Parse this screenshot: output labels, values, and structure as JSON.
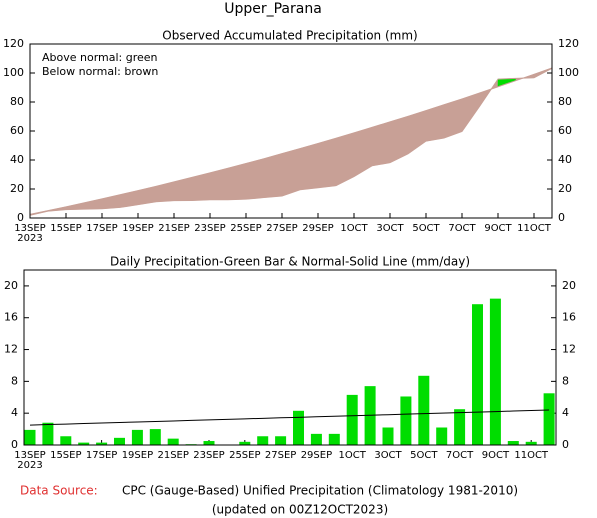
{
  "title": "Upper_Parana",
  "footer": {
    "source_label": "Data Source:",
    "source": "CPC (Gauge-Based) Unified Precipitation (Climatology 1981-2010)",
    "updated": "(updated on 00Z12OCT2023)"
  },
  "chart_data": [
    {
      "type": "area",
      "title": "Observed Accumulated Precipitation (mm)",
      "annotations": [
        "Above normal: green",
        "Below normal: brown"
      ],
      "year_label": "2023",
      "categories": [
        "13SEP",
        null,
        "15SEP",
        null,
        "17SEP",
        null,
        "19SEP",
        null,
        "21SEP",
        null,
        "23SEP",
        null,
        "25SEP",
        null,
        "27SEP",
        null,
        "29SEP",
        null,
        "1OCT",
        null,
        "3OCT",
        null,
        "5OCT",
        null,
        "7OCT",
        null,
        "9OCT",
        null,
        "11OCT",
        null
      ],
      "series": [
        {
          "values": [
            1.9,
            4.7,
            5.8,
            6.1,
            6.4,
            7.3,
            9.2,
            11.2,
            12.0,
            12.1,
            12.6,
            12.6,
            13.0,
            14.1,
            15.2,
            19.5,
            20.9,
            22.3,
            28.6,
            36.0,
            38.2,
            44.3,
            53.0,
            55.2,
            59.7,
            77.4,
            95.8,
            96.3,
            96.7,
            103.2
          ]
        },
        {
          "values": [
            2.5,
            5.1,
            7.7,
            10.4,
            13.2,
            16.0,
            18.9,
            21.8,
            24.9,
            28.0,
            31.1,
            34.3,
            37.6,
            40.9,
            44.4,
            47.9,
            51.4,
            55.0,
            58.7,
            62.5,
            66.3,
            70.1,
            74.1,
            78.1,
            82.1,
            86.3,
            90.5,
            94.8,
            99.1,
            103.5
          ]
        }
      ],
      "above_color": "#00dd00",
      "below_color": "#c8a096",
      "ylim": [
        0,
        120
      ],
      "yticks": [
        0,
        20,
        40,
        60,
        80,
        100,
        120
      ]
    },
    {
      "type": "bar",
      "title": "Daily Precipitation-Green Bar & Normal-Solid Line (mm/day)",
      "year_label": "2023",
      "categories": [
        "13SEP",
        null,
        "15SEP",
        null,
        "17SEP",
        null,
        "19SEP",
        null,
        "21SEP",
        null,
        "23SEP",
        null,
        "25SEP",
        null,
        "27SEP",
        null,
        "29SEP",
        null,
        "1OCT",
        null,
        "3OCT",
        null,
        "5OCT",
        null,
        "7OCT",
        null,
        "9OCT",
        null,
        "11OCT",
        null
      ],
      "series": [
        {
          "type": "bar",
          "color": "#00dd00",
          "values": [
            1.9,
            2.8,
            1.1,
            0.3,
            0.3,
            0.9,
            1.9,
            2.0,
            0.8,
            0.1,
            0.5,
            0,
            0.4,
            1.1,
            1.1,
            4.3,
            1.4,
            1.4,
            6.3,
            7.4,
            2.2,
            6.1,
            8.7,
            2.2,
            4.5,
            17.7,
            18.4,
            0.5,
            0.4,
            6.5
          ]
        },
        {
          "type": "line",
          "color": "#000000",
          "values": [
            2.5,
            2.57,
            2.63,
            2.7,
            2.76,
            2.83,
            2.89,
            2.96,
            3.02,
            3.09,
            3.16,
            3.22,
            3.29,
            3.35,
            3.42,
            3.48,
            3.55,
            3.61,
            3.68,
            3.74,
            3.81,
            3.88,
            3.94,
            4.01,
            4.07,
            4.14,
            4.2,
            4.27,
            4.33,
            4.4
          ]
        }
      ],
      "ylim": [
        0,
        22
      ],
      "yticks": [
        0,
        4,
        8,
        12,
        16,
        20
      ]
    }
  ]
}
